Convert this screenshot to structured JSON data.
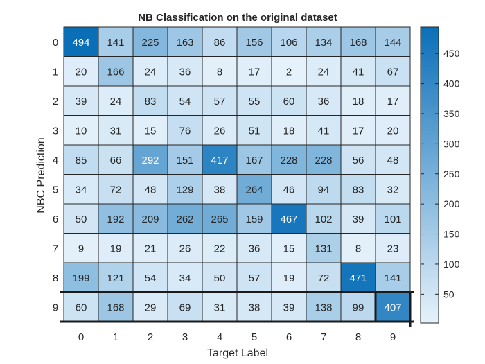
{
  "chart_data": {
    "type": "heatmap",
    "title": "NB Classification on the original dataset",
    "xlabel": "Target Label",
    "ylabel": "NBC Prediction",
    "x_categories": [
      "0",
      "1",
      "2",
      "3",
      "4",
      "5",
      "6",
      "7",
      "8",
      "9"
    ],
    "y_categories": [
      "0",
      "1",
      "2",
      "3",
      "4",
      "5",
      "6",
      "7",
      "8",
      "9"
    ],
    "values": [
      [
        494,
        141,
        225,
        163,
        86,
        156,
        106,
        134,
        168,
        144
      ],
      [
        20,
        166,
        24,
        36,
        8,
        17,
        2,
        24,
        41,
        67
      ],
      [
        39,
        24,
        83,
        54,
        57,
        55,
        60,
        36,
        18,
        17
      ],
      [
        10,
        31,
        15,
        76,
        26,
        51,
        18,
        41,
        17,
        20
      ],
      [
        85,
        66,
        292,
        151,
        417,
        167,
        228,
        228,
        56,
        48
      ],
      [
        34,
        72,
        48,
        129,
        38,
        264,
        46,
        94,
        83,
        32
      ],
      [
        50,
        192,
        209,
        262,
        265,
        159,
        467,
        102,
        39,
        101
      ],
      [
        9,
        19,
        21,
        26,
        22,
        36,
        15,
        131,
        8,
        23
      ],
      [
        199,
        121,
        54,
        34,
        50,
        57,
        19,
        72,
        471,
        141
      ],
      [
        60,
        168,
        29,
        69,
        31,
        38,
        39,
        138,
        99,
        407
      ]
    ],
    "colorbar": {
      "ticks": [
        50,
        100,
        150,
        200,
        250,
        300,
        350,
        400,
        450
      ],
      "range": [
        2,
        494
      ],
      "color_low": "#e6f2fb",
      "color_high": "#0b6fb8"
    },
    "highlight_row": "9",
    "grid": true,
    "legend": "colorbar-right"
  }
}
